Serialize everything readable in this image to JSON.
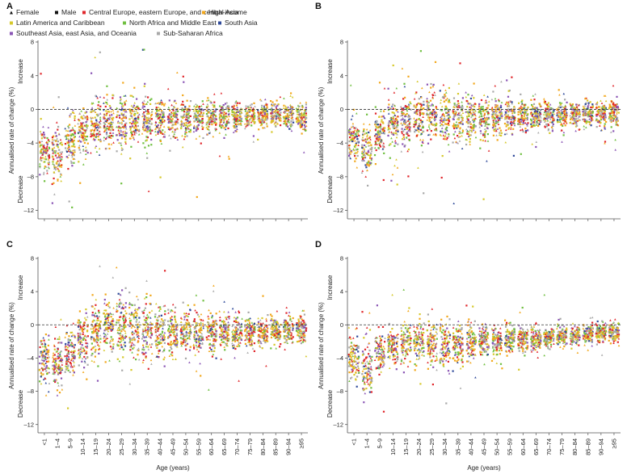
{
  "colors": {
    "Central Europe, eastern Europe, and central Asia": "#e0262b",
    "High-income": "#f2a71b",
    "Latin America and Caribbean": "#d6c82a",
    "North Africa and Middle East": "#6fbf3f",
    "South Asia": "#2f4a9a",
    "Southeast Asia, east Asia, and Oceania": "#8a55b5",
    "Sub-Saharan Africa": "#a8a8a8"
  },
  "legend": {
    "female": "Female",
    "male": "Male",
    "regions": [
      "Central Europe, eastern Europe, and central Asia",
      "High-income",
      "Latin America and Caribbean",
      "North Africa and Middle East",
      "South Asia",
      "Southeast Asia, east Asia, and Oceania",
      "Sub-Saharan Africa"
    ]
  },
  "chart_data": {
    "type": "scatter",
    "title": "",
    "xlabel": "Age (years)",
    "ylabel": "Annualised rate of change (%)",
    "ylabel_increase": "Increase",
    "ylabel_decrease": "Decrease",
    "ylim": [
      -13,
      8
    ],
    "yticks": [
      "8",
      "4",
      "0",
      "–4",
      "–8",
      "–12"
    ],
    "reference_line": 0,
    "categories": [
      "<1",
      "1–4",
      "5–9",
      "10–14",
      "15–19",
      "20–24",
      "25–29",
      "30–34",
      "35–39",
      "40–44",
      "45–49",
      "50–54",
      "55–59",
      "60–64",
      "65–69",
      "70–74",
      "75–79",
      "80–84",
      "85–89",
      "90–94",
      "≥95"
    ],
    "panels": [
      {
        "label": "A",
        "medians": [
          -4.8,
          -5.2,
          -3.8,
          -2.6,
          -1.8,
          -1.4,
          -1.5,
          -1.3,
          -1.4,
          -1.2,
          -1.1,
          -1.0,
          -1.0,
          -0.9,
          -0.9,
          -0.8,
          -0.8,
          -0.7,
          -0.7,
          -0.8,
          -0.8
        ],
        "spread": [
          2.2,
          2.6,
          2.3,
          2.2,
          2.3,
          2.4,
          2.4,
          2.2,
          2.2,
          2.0,
          1.9,
          1.8,
          1.6,
          1.5,
          1.4,
          1.3,
          1.2,
          1.1,
          1.1,
          1.2,
          1.3
        ]
      },
      {
        "label": "B",
        "medians": [
          -3.5,
          -4.8,
          -3.0,
          -1.8,
          -1.2,
          -0.8,
          -0.5,
          -0.8,
          -0.9,
          -1.0,
          -1.0,
          -0.9,
          -0.8,
          -0.8,
          -0.7,
          -0.7,
          -0.6,
          -0.6,
          -0.5,
          -0.5,
          -0.5
        ],
        "spread": [
          2.0,
          2.3,
          2.2,
          2.1,
          2.2,
          2.4,
          2.6,
          2.5,
          2.3,
          2.1,
          1.9,
          1.8,
          1.6,
          1.5,
          1.4,
          1.3,
          1.2,
          1.1,
          1.1,
          1.2,
          1.3
        ]
      },
      {
        "label": "C",
        "medians": [
          -3.8,
          -4.5,
          -3.2,
          -1.8,
          -0.8,
          -0.4,
          -0.2,
          -0.5,
          -0.8,
          -0.9,
          -1.0,
          -1.0,
          -1.0,
          -0.9,
          -0.9,
          -0.9,
          -0.9,
          -0.8,
          -0.7,
          -0.6,
          -0.5
        ],
        "spread": [
          2.3,
          2.5,
          2.6,
          2.7,
          2.8,
          2.9,
          2.9,
          2.8,
          2.6,
          2.4,
          2.2,
          2.0,
          1.9,
          1.8,
          1.7,
          1.6,
          1.5,
          1.4,
          1.3,
          1.3,
          1.4
        ]
      },
      {
        "label": "D",
        "medians": [
          -4.2,
          -5.5,
          -3.5,
          -2.6,
          -2.3,
          -2.0,
          -2.2,
          -2.4,
          -2.3,
          -2.2,
          -2.0,
          -1.9,
          -1.8,
          -1.7,
          -1.6,
          -1.5,
          -1.4,
          -1.3,
          -1.1,
          -1.0,
          -0.9
        ],
        "spread": [
          1.9,
          2.3,
          1.9,
          1.8,
          1.7,
          1.7,
          2.0,
          2.2,
          2.0,
          1.7,
          1.5,
          1.4,
          1.3,
          1.2,
          1.1,
          1.0,
          0.9,
          0.9,
          0.9,
          0.9,
          1.0
        ]
      }
    ]
  }
}
